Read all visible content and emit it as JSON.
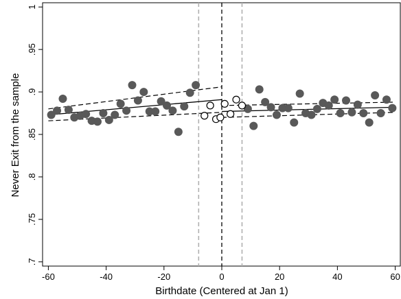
{
  "chart_data": {
    "type": "scatter",
    "xlabel": "Birthdate (Centered at Jan 1)",
    "ylabel": "Never Exit from the sample",
    "xlim": [
      -62,
      62
    ],
    "ylim": [
      0.695,
      1.005
    ],
    "x_ticks": [
      -60,
      -40,
      -20,
      0,
      20,
      40,
      60
    ],
    "x_tick_labels": [
      "-60",
      "-40",
      "-20",
      "0",
      "20",
      "40",
      "60"
    ],
    "y_ticks": [
      0.7,
      0.75,
      0.8,
      0.85,
      0.9,
      0.95,
      1
    ],
    "y_tick_labels": [
      ".7",
      ".75",
      ".8",
      ".85",
      ".9",
      ".95",
      "1"
    ],
    "grid": false,
    "legend": "none",
    "colors": {
      "filled_marker": "#595959",
      "fit_line": "#000000",
      "vline_center": "#000000",
      "vline_band": "#b0b0b0"
    },
    "vertical_lines": [
      {
        "x": 0,
        "style": "dashed-black"
      },
      {
        "x": -8,
        "style": "dashed-gray"
      },
      {
        "x": 7,
        "style": "dashed-gray"
      }
    ],
    "series": [
      {
        "marker": "filled-circle",
        "points": [
          [
            -59,
            0.873
          ],
          [
            -57,
            0.878
          ],
          [
            -55,
            0.892
          ],
          [
            -53,
            0.879
          ],
          [
            -51,
            0.87
          ],
          [
            -49,
            0.872
          ],
          [
            -47,
            0.874
          ],
          [
            -45,
            0.866
          ],
          [
            -43,
            0.865
          ],
          [
            -41,
            0.875
          ],
          [
            -39,
            0.867
          ],
          [
            -37,
            0.873
          ],
          [
            -35,
            0.886
          ],
          [
            -33,
            0.878
          ],
          [
            -31,
            0.908
          ],
          [
            -29,
            0.89
          ],
          [
            -27,
            0.9
          ],
          [
            -25,
            0.877
          ],
          [
            -23,
            0.877
          ],
          [
            -21,
            0.889
          ],
          [
            -19,
            0.884
          ],
          [
            -17,
            0.878
          ],
          [
            -15,
            0.853
          ],
          [
            -13,
            0.883
          ],
          [
            -11,
            0.899
          ],
          [
            -9,
            0.908
          ],
          [
            9,
            0.88
          ],
          [
            11,
            0.86
          ],
          [
            13,
            0.903
          ],
          [
            15,
            0.888
          ],
          [
            17,
            0.882
          ],
          [
            19,
            0.873
          ],
          [
            21,
            0.881
          ],
          [
            23,
            0.881
          ],
          [
            25,
            0.864
          ],
          [
            27,
            0.898
          ],
          [
            29,
            0.875
          ],
          [
            31,
            0.873
          ],
          [
            33,
            0.88
          ],
          [
            35,
            0.887
          ],
          [
            37,
            0.884
          ],
          [
            39,
            0.891
          ],
          [
            41,
            0.875
          ],
          [
            43,
            0.89
          ],
          [
            45,
            0.876
          ],
          [
            47,
            0.885
          ],
          [
            49,
            0.875
          ],
          [
            51,
            0.864
          ],
          [
            53,
            0.896
          ],
          [
            55,
            0.875
          ],
          [
            57,
            0.891
          ],
          [
            59,
            0.881
          ]
        ]
      },
      {
        "marker": "hollow-circle",
        "points": [
          [
            -6,
            0.872
          ],
          [
            -4,
            0.884
          ],
          [
            -2,
            0.868
          ],
          [
            -0.5,
            0.87
          ],
          [
            1,
            0.886
          ],
          [
            3,
            0.874
          ],
          [
            5,
            0.891
          ],
          [
            7,
            0.884
          ]
        ]
      }
    ],
    "fit_lines": [
      {
        "style": "solid",
        "x": [
          -60,
          0
        ],
        "y": [
          0.873,
          0.891
        ]
      },
      {
        "style": "dashed",
        "x": [
          -60,
          0
        ],
        "y": [
          0.88,
          0.906
        ]
      },
      {
        "style": "dashed",
        "x": [
          -60,
          0
        ],
        "y": [
          0.866,
          0.876
        ]
      },
      {
        "style": "solid",
        "x": [
          0,
          60
        ],
        "y": [
          0.877,
          0.882
        ]
      },
      {
        "style": "dashed",
        "x": [
          0,
          60
        ],
        "y": [
          0.884,
          0.888
        ]
      },
      {
        "style": "dashed",
        "x": [
          0,
          60
        ],
        "y": [
          0.87,
          0.876
        ]
      }
    ]
  }
}
